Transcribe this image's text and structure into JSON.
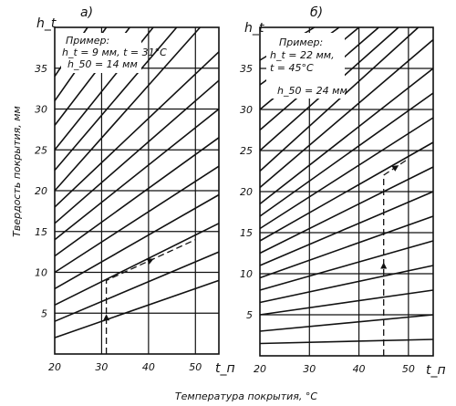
{
  "chart_data": [
    {
      "type": "line",
      "panel_label": "а)",
      "ylabel": "h_t",
      "xlabel": "t_п",
      "xlim": [
        20,
        55
      ],
      "ylim": [
        0,
        40
      ],
      "x_ticks": [
        "20",
        "30",
        "40",
        "50"
      ],
      "y_ticks": [
        "5",
        "10",
        "15",
        "20",
        "25",
        "30",
        "35"
      ],
      "series": [
        {
          "x": [
            20,
            55
          ],
          "values": [
            2,
            9
          ]
        },
        {
          "x": [
            20,
            55
          ],
          "values": [
            4,
            12.5
          ]
        },
        {
          "x": [
            20,
            55
          ],
          "values": [
            6,
            16
          ]
        },
        {
          "x": [
            20,
            55
          ],
          "values": [
            8,
            19.5
          ]
        },
        {
          "x": [
            20,
            55
          ],
          "values": [
            10,
            23
          ]
        },
        {
          "x": [
            20,
            55
          ],
          "values": [
            12,
            26.5
          ]
        },
        {
          "x": [
            20,
            55
          ],
          "values": [
            14,
            30
          ]
        },
        {
          "x": [
            20,
            55
          ],
          "values": [
            16,
            33.5
          ]
        },
        {
          "x": [
            20,
            55
          ],
          "values": [
            18,
            37
          ]
        },
        {
          "x": [
            20,
            51
          ],
          "values": [
            20,
            40
          ]
        },
        {
          "x": [
            20,
            46
          ],
          "values": [
            22.5,
            40
          ]
        },
        {
          "x": [
            20,
            41
          ],
          "values": [
            25,
            40
          ]
        },
        {
          "x": [
            20,
            36
          ],
          "values": [
            28,
            40
          ]
        },
        {
          "x": [
            20,
            31
          ],
          "values": [
            31,
            40
          ]
        },
        {
          "x": [
            20,
            27
          ],
          "values": [
            34,
            40
          ]
        }
      ],
      "example": {
        "title": "Пример:",
        "line1": "h_t = 9 мм, t = 31°C",
        "line2": "h_50 = 14 мм"
      },
      "example_path": [
        {
          "x": 31,
          "y": 0
        },
        {
          "x": 31,
          "y": 9
        },
        {
          "x": 50,
          "y": 14
        }
      ]
    },
    {
      "type": "line",
      "panel_label": "б)",
      "ylabel": "h_t",
      "xlabel": "t_п",
      "xlim": [
        20,
        55
      ],
      "ylim": [
        0,
        40
      ],
      "x_ticks": [
        "20",
        "30",
        "40",
        "50"
      ],
      "y_ticks": [
        "5",
        "10",
        "15",
        "20",
        "25",
        "30",
        "35"
      ],
      "series": [
        {
          "x": [
            20,
            55
          ],
          "values": [
            1.5,
            2
          ]
        },
        {
          "x": [
            20,
            55
          ],
          "values": [
            3,
            5
          ]
        },
        {
          "x": [
            20,
            55
          ],
          "values": [
            5,
            8
          ]
        },
        {
          "x": [
            20,
            55
          ],
          "values": [
            6.5,
            11
          ]
        },
        {
          "x": [
            20,
            55
          ],
          "values": [
            8,
            14
          ]
        },
        {
          "x": [
            20,
            55
          ],
          "values": [
            9.5,
            17
          ]
        },
        {
          "x": [
            20,
            55
          ],
          "values": [
            11,
            20
          ]
        },
        {
          "x": [
            20,
            55
          ],
          "values": [
            12.5,
            23
          ]
        },
        {
          "x": [
            20,
            55
          ],
          "values": [
            14,
            26
          ]
        },
        {
          "x": [
            20,
            55
          ],
          "values": [
            15.5,
            29
          ]
        },
        {
          "x": [
            20,
            55
          ],
          "values": [
            17,
            32
          ]
        },
        {
          "x": [
            20,
            55
          ],
          "values": [
            18.5,
            35
          ]
        },
        {
          "x": [
            20,
            55
          ],
          "values": [
            20.5,
            38.5
          ]
        },
        {
          "x": [
            20,
            52
          ],
          "values": [
            22.5,
            40
          ]
        },
        {
          "x": [
            20,
            48
          ],
          "values": [
            25,
            40
          ]
        },
        {
          "x": [
            20,
            44
          ],
          "values": [
            27.5,
            40
          ]
        },
        {
          "x": [
            20,
            40
          ],
          "values": [
            30,
            40
          ]
        },
        {
          "x": [
            20,
            36
          ],
          "values": [
            33,
            40
          ]
        },
        {
          "x": [
            20,
            31
          ],
          "values": [
            36,
            40
          ]
        }
      ],
      "example": {
        "title": "Пример:",
        "line1": "h_t = 22 мм,",
        "line2": "t = 45°C",
        "line3": "h_50 = 24 мм"
      },
      "example_path": [
        {
          "x": 45,
          "y": 0
        },
        {
          "x": 45,
          "y": 22
        },
        {
          "x": 50,
          "y": 24
        }
      ]
    }
  ],
  "shared": {
    "y_axis_title": "Твердость покрытия, мм",
    "x_axis_title": "Температура покрытия, °C"
  }
}
